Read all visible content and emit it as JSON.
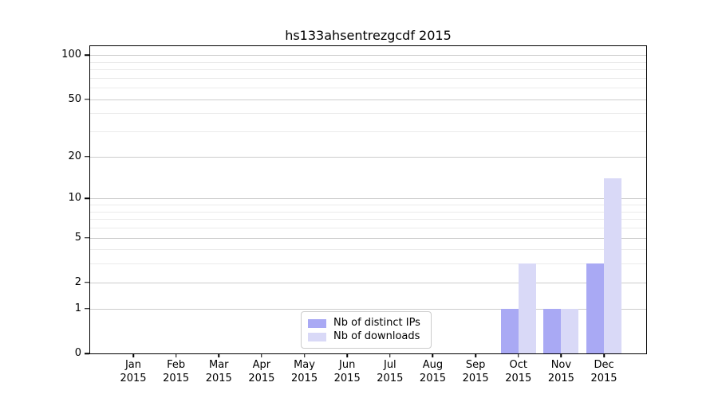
{
  "figure": {
    "background_color": "#ffffff",
    "spine_color": "#000000",
    "major_grid_color": "#cccccc",
    "minor_grid_color": "#ebebeb"
  },
  "chart_data": {
    "type": "bar",
    "title": "hs133ahsentrezgcdf 2015",
    "categories": [
      "Jan",
      "Feb",
      "Mar",
      "Apr",
      "May",
      "Jun",
      "Jul",
      "Aug",
      "Sep",
      "Oct",
      "Nov",
      "Dec"
    ],
    "year_label": "2015",
    "series": [
      {
        "name": "Nb of distinct IPs",
        "color": "#a9a9f4",
        "values": [
          0,
          0,
          0,
          0,
          0,
          0,
          0,
          0,
          0,
          1,
          1,
          3
        ]
      },
      {
        "name": "Nb of downloads",
        "color": "#d9d9f7",
        "values": [
          0,
          0,
          0,
          0,
          0,
          0,
          0,
          0,
          0,
          3,
          1,
          14
        ]
      }
    ],
    "xlabel": "",
    "ylabel": "",
    "yscale": "log1p",
    "ylim": [
      0,
      115
    ],
    "yticks": [
      0,
      1,
      2,
      5,
      10,
      20,
      50,
      100
    ],
    "ytick_labels": [
      "0",
      "1",
      "2",
      "5",
      "10",
      "20",
      "50",
      "100"
    ],
    "minor_gridlines": [
      3,
      4,
      6,
      7,
      8,
      9,
      30,
      40,
      60,
      70,
      80,
      90
    ],
    "grid": true,
    "legend_position": "lower-center-inside",
    "legend_entries": [
      "Nb of distinct IPs",
      "Nb of downloads"
    ]
  }
}
